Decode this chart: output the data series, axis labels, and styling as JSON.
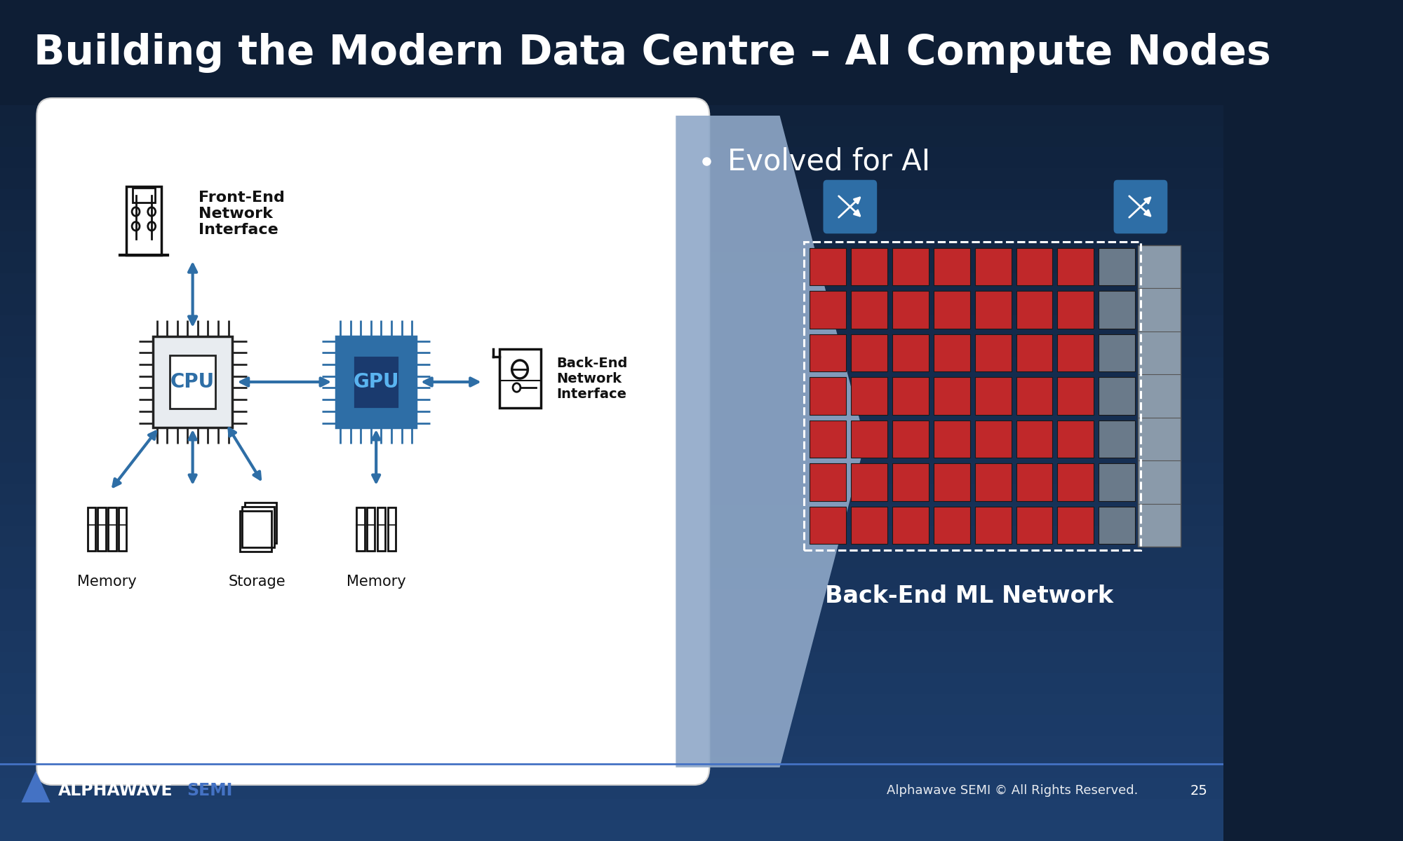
{
  "title": "Building the Modern Data Centre – AI Compute Nodes",
  "title_color": "#FFFFFF",
  "title_fontsize": 42,
  "bg_dark": "#0e1e35",
  "bg_mid": "#1a3055",
  "bg_light": "#1e4070",
  "white_box_bg": "#FFFFFF",
  "bullet_text": "Evolved for AI",
  "bullet_color": "#FFFFFF",
  "bullet_fontsize": 30,
  "frontend_label": "Front-End\nNetwork\nInterface",
  "backend_label": "Back-End\nNetwork\nInterface",
  "cpu_label": "CPU",
  "gpu_label": "GPU",
  "memory_label1": "Memory",
  "memory_label2": "Memory",
  "storage_label": "Storage",
  "backend_network_label": "Back-End ML Network",
  "arrow_color": "#2e6ea6",
  "cpu_outer_color": "#222222",
  "gpu_outer_color": "#2e6ea6",
  "label_color": "#111111",
  "footer_text": "Alphawave SEMI © All Rights Reserved.",
  "page_num": "25",
  "footer_color": "#FFFFFF",
  "alphawave_label": "ALPHAWAVE",
  "semi_label": "SEMI",
  "semi_color": "#4472c4",
  "title_bar_color": "#0e1e35"
}
